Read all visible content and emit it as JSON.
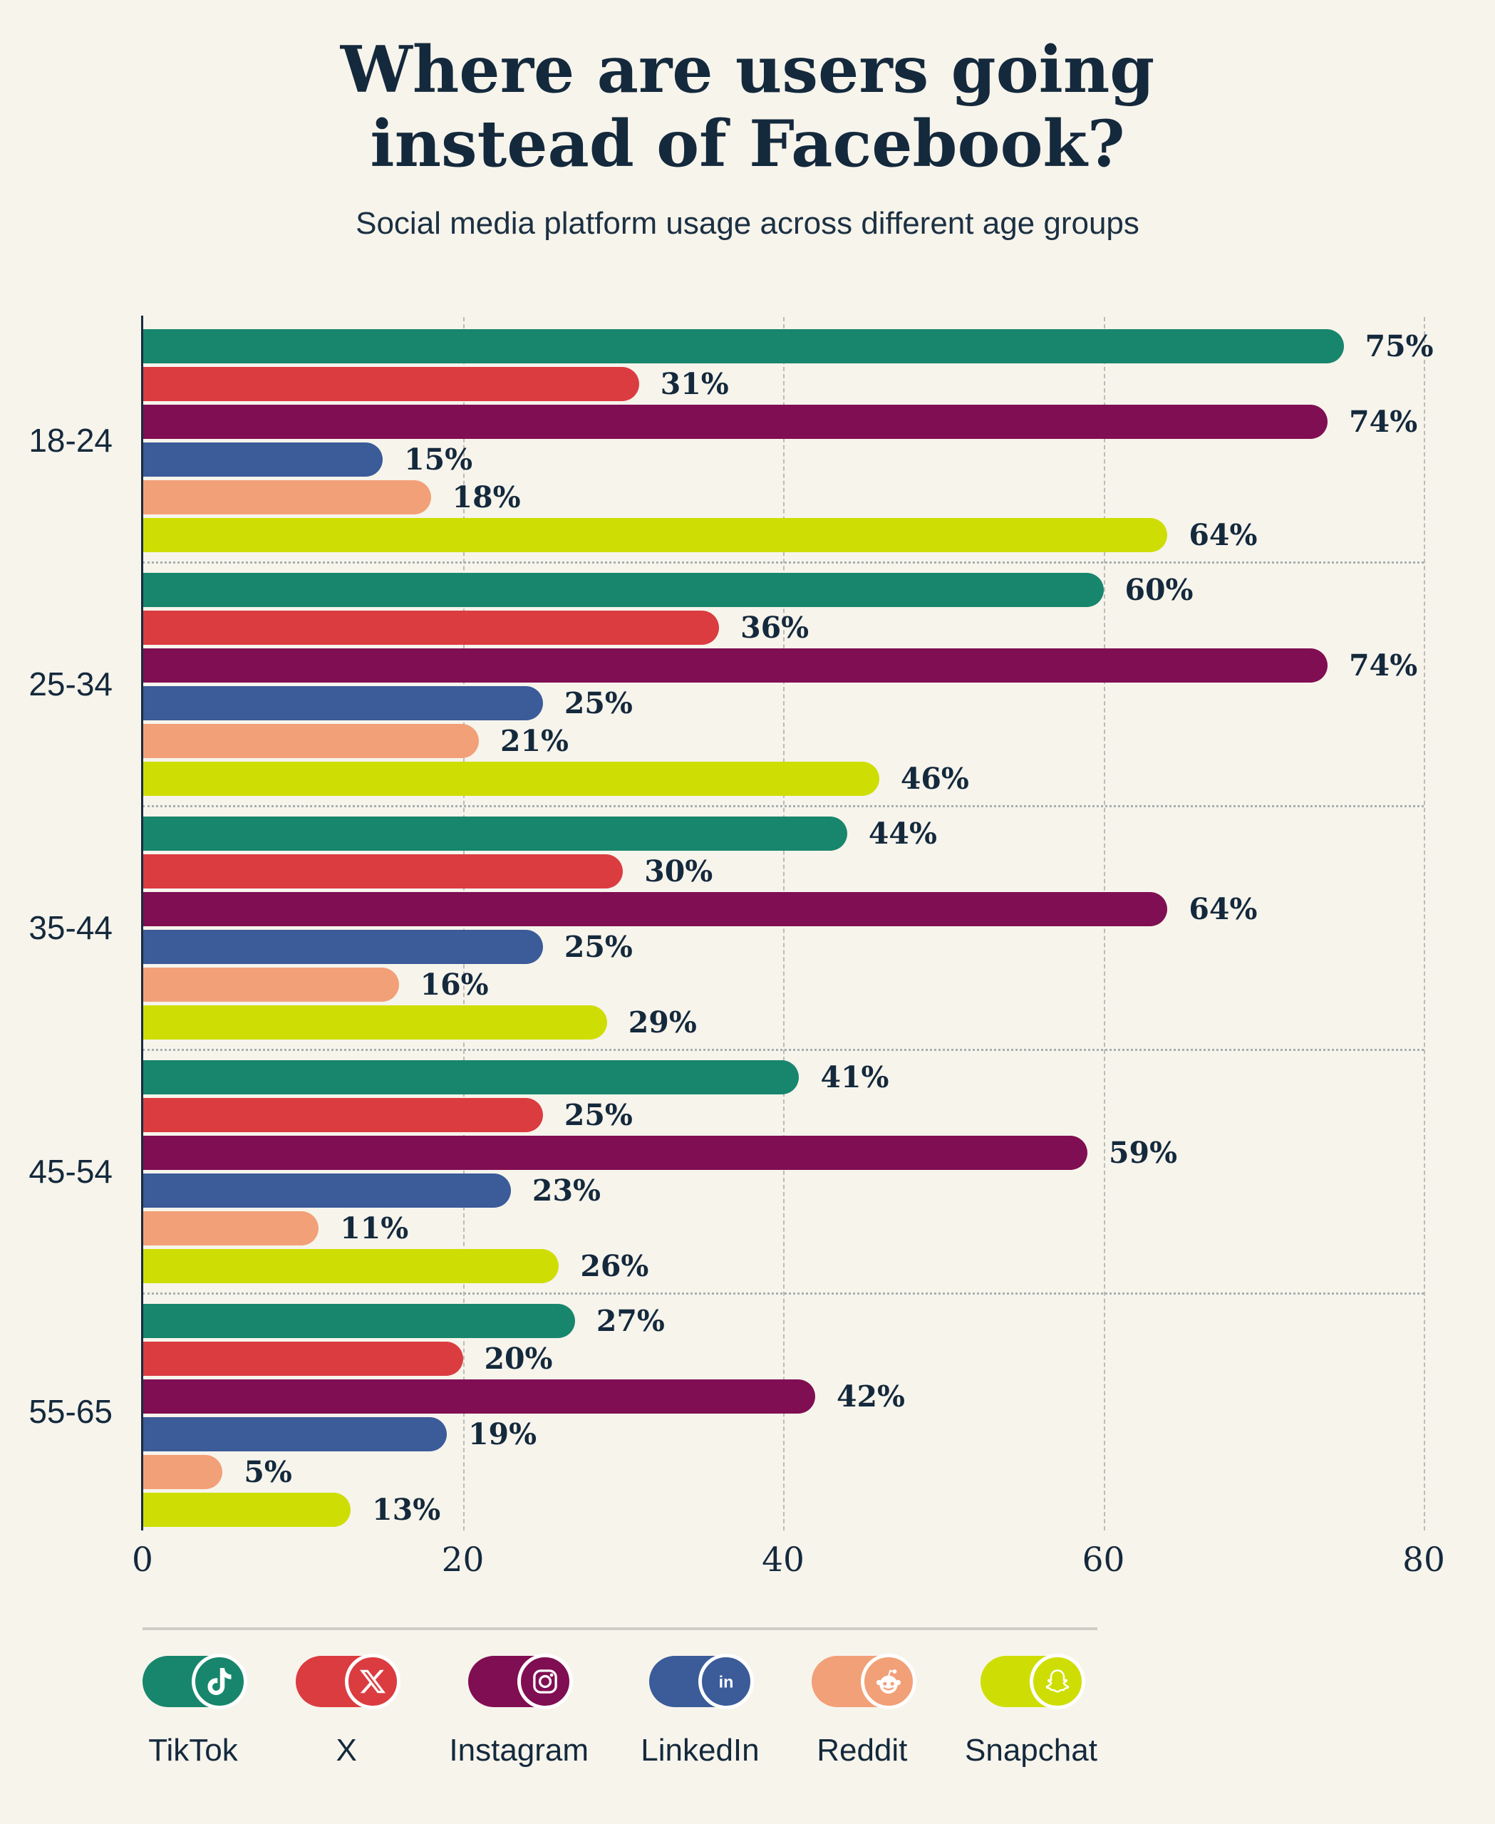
{
  "title": "Where are users going instead of Facebook?",
  "subtitle": "Social media platform usage across different age groups",
  "colors": {
    "background": "#F7F4EC",
    "text": "#14293C",
    "axis": "#1A2C3E",
    "gridline": "#B9BCB9",
    "group_separator": "#A6AFAF",
    "legend_divider": "#CFCDC5"
  },
  "chart_data": {
    "type": "bar",
    "orientation": "horizontal",
    "title": "Where are users going instead of Facebook?",
    "subtitle": "Social media platform usage across different age groups",
    "categories": [
      "18-24",
      "25-34",
      "35-44",
      "45-54",
      "55-65"
    ],
    "series": [
      {
        "name": "TikTok",
        "icon": "tiktok-icon",
        "color": "#17866C",
        "values": [
          75,
          60,
          44,
          41,
          27
        ]
      },
      {
        "name": "X",
        "icon": "x-icon",
        "color": "#DB3C40",
        "values": [
          31,
          36,
          30,
          25,
          20
        ]
      },
      {
        "name": "Instagram",
        "icon": "instagram-icon",
        "color": "#800E52",
        "values": [
          74,
          74,
          64,
          59,
          42
        ]
      },
      {
        "name": "LinkedIn",
        "icon": "linkedin-icon",
        "color": "#3B5B99",
        "values": [
          15,
          25,
          25,
          23,
          19
        ]
      },
      {
        "name": "Reddit",
        "icon": "reddit-icon",
        "color": "#F2A077",
        "values": [
          18,
          21,
          16,
          11,
          5
        ]
      },
      {
        "name": "Snapchat",
        "icon": "snapchat-icon",
        "color": "#CEDE04",
        "values": [
          64,
          46,
          29,
          26,
          13
        ]
      }
    ],
    "x_axis": {
      "ticks": [
        0,
        20,
        40,
        60,
        80
      ],
      "max": 80
    },
    "value_suffix": "%",
    "grid": "vertical-dashed",
    "legend_position": "bottom"
  }
}
